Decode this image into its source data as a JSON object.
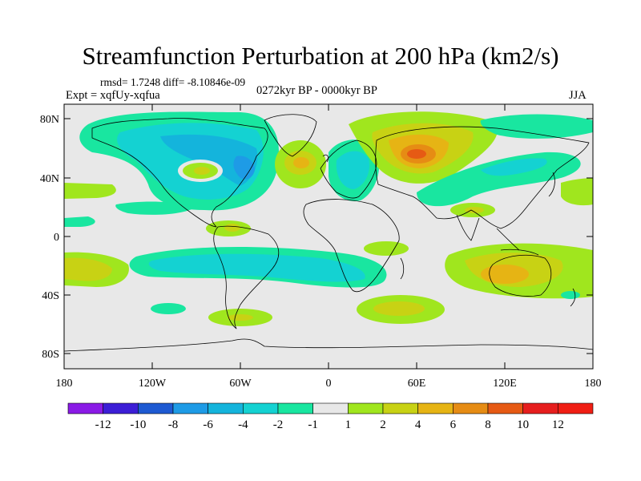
{
  "title": "Streamfunction Perturbation at 200 hPa (km2/s)",
  "stats": "rmsd= 1.7248 diff= -8.10846e-09",
  "expt": "Expt = xqfUy-xqfua",
  "period": "0272kyr BP - 0000kyr BP",
  "season": "JJA",
  "x_ticks": [
    "180",
    "120W",
    "60W",
    "0",
    "60E",
    "120E",
    "180"
  ],
  "y_ticks": [
    "80N",
    "40N",
    "0",
    "40S",
    "80S"
  ],
  "colorbar": {
    "labels": [
      "-12",
      "-10",
      "-8",
      "-6",
      "-4",
      "-2",
      "-1",
      "1",
      "2",
      "4",
      "6",
      "8",
      "10",
      "12"
    ],
    "colors": [
      "#8a1ae6",
      "#3c1ed6",
      "#1e5ad2",
      "#1e9be6",
      "#14b4dc",
      "#14d2d2",
      "#19e6a0",
      "#e8e8e8",
      "#a0e61e",
      "#c8d214",
      "#e6b414",
      "#e68c14",
      "#e65a14",
      "#e61e1e",
      "#f01e14"
    ]
  },
  "colors": {
    "land_background": "#e8e8e8",
    "coast": "#000000"
  }
}
